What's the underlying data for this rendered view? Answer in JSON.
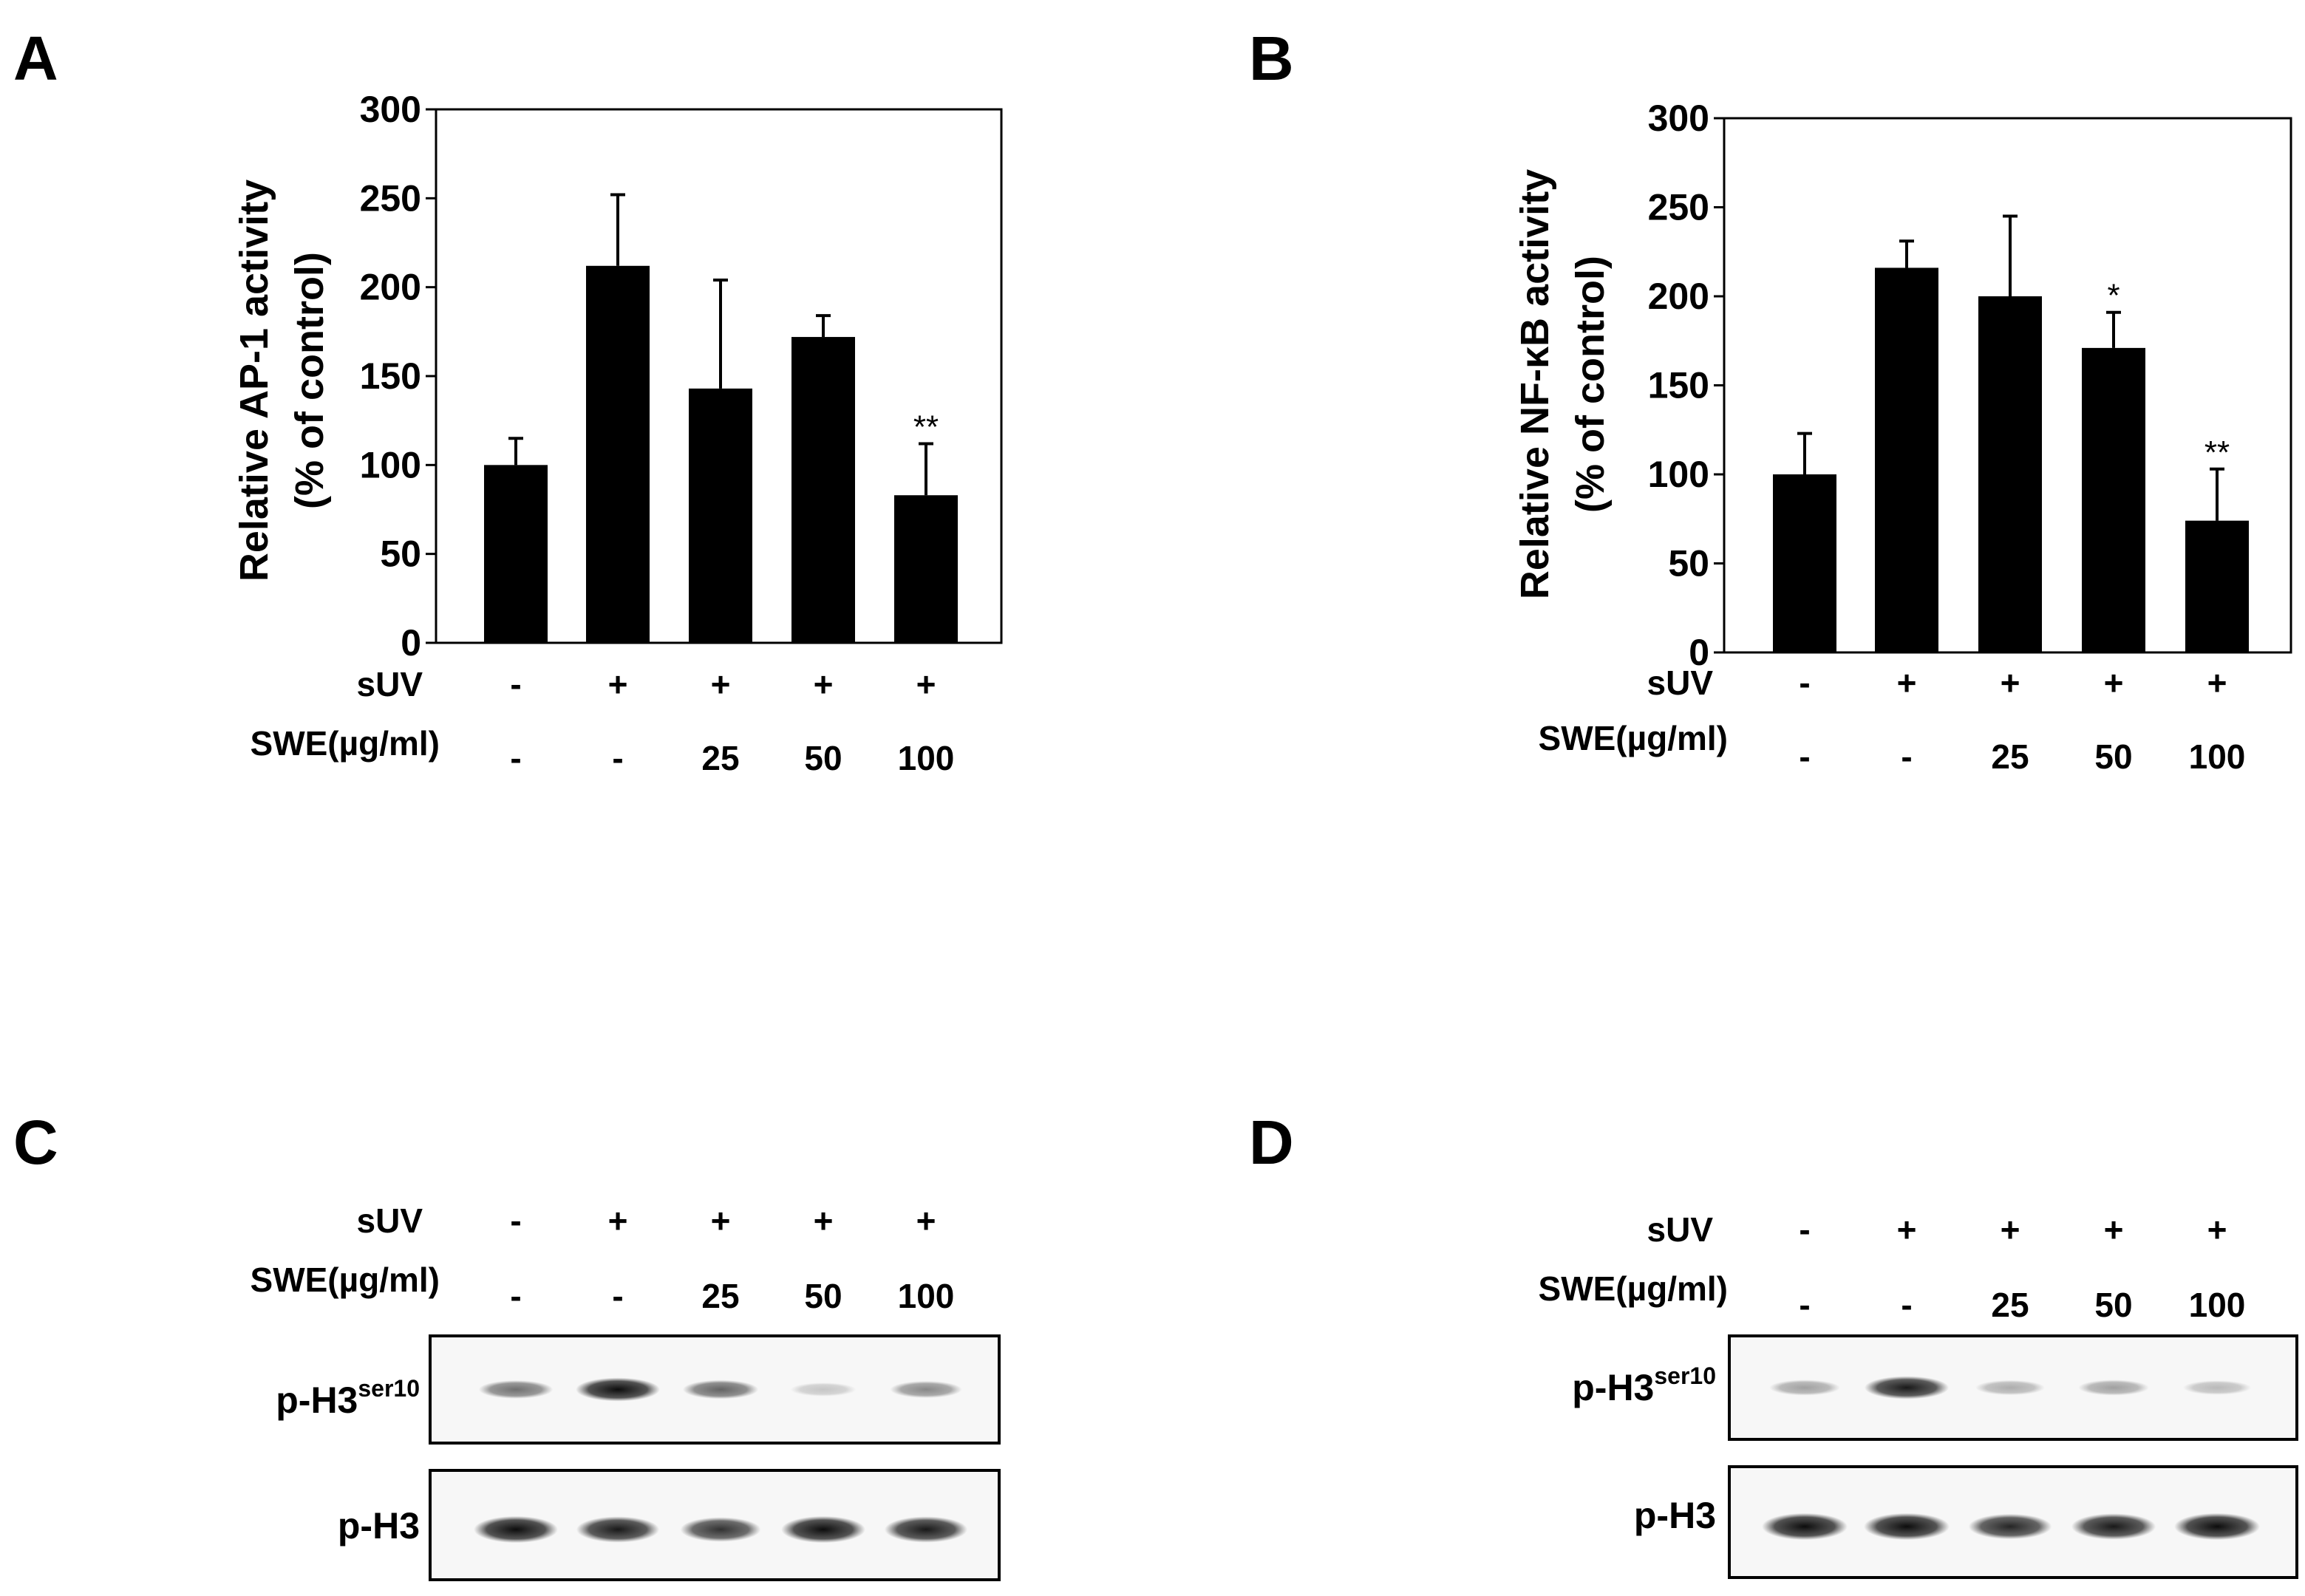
{
  "panels": {
    "A": {
      "letter": "A",
      "ylabel_line1": "Relative  AP-1 activity",
      "ylabel_line2": "(% of control)",
      "row1_label": "sUV",
      "row2_label": "SWE(µg/ml)",
      "suv": [
        "-",
        "+",
        "+",
        "+",
        "+"
      ],
      "swe": [
        "-",
        "-",
        "25",
        "50",
        "100"
      ]
    },
    "B": {
      "letter": "B",
      "ylabel_line1": "Relative NF-κB activity",
      "ylabel_line2": "(% of control)",
      "row1_label": "sUV",
      "row2_label": "SWE(µg/ml)",
      "suv": [
        "-",
        "+",
        "+",
        "+",
        "+"
      ],
      "swe": [
        "-",
        "-",
        "25",
        "50",
        "100"
      ]
    },
    "C": {
      "letter": "C",
      "row1_label": "sUV",
      "row2_label": "SWE(µg/ml)",
      "suv": [
        "-",
        "+",
        "+",
        "+",
        "+"
      ],
      "swe": [
        "-",
        "-",
        "25",
        "50",
        "100"
      ],
      "blot1_label": "p-H3",
      "blot1_sup": "ser10",
      "blot2_label": "p-H3",
      "blot1_intensity": [
        0.55,
        0.95,
        0.6,
        0.2,
        0.45
      ],
      "blot2_intensity": [
        0.95,
        0.9,
        0.8,
        0.95,
        0.9
      ]
    },
    "D": {
      "letter": "D",
      "row1_label": "sUV",
      "row2_label": "SWE(µg/ml)",
      "suv": [
        "-",
        "+",
        "+",
        "+",
        "+"
      ],
      "swe": [
        "-",
        "-",
        "25",
        "50",
        "100"
      ],
      "blot1_label": "p-H3",
      "blot1_sup": "ser10",
      "blot2_label": "p-H3",
      "blot1_intensity": [
        0.35,
        0.9,
        0.3,
        0.35,
        0.25
      ],
      "blot2_intensity": [
        0.95,
        0.95,
        0.85,
        0.9,
        0.95
      ]
    }
  },
  "chart_data": [
    {
      "type": "bar",
      "panel": "A",
      "ylabel": "Relative  AP-1 activity (% of control)",
      "ylim": [
        0,
        300
      ],
      "yticks": [
        0,
        50,
        100,
        150,
        200,
        250,
        300
      ],
      "categories": [
        "- / -",
        "+ / -",
        "+ / 25",
        "+ / 50",
        "+ / 100"
      ],
      "values": [
        100,
        212,
        143,
        172,
        83
      ],
      "errors": [
        15,
        40,
        61,
        12,
        29
      ],
      "significance": [
        "",
        "",
        "",
        "",
        "**"
      ]
    },
    {
      "type": "bar",
      "panel": "B",
      "ylabel": "Relative NF-κB activity (% of control)",
      "ylim": [
        0,
        300
      ],
      "yticks": [
        0,
        50,
        100,
        150,
        200,
        250,
        300
      ],
      "categories": [
        "- / -",
        "+ / -",
        "+ / 25",
        "+ / 50",
        "+ / 100"
      ],
      "values": [
        100,
        216,
        200,
        171,
        74
      ],
      "errors": [
        23,
        15,
        45,
        20,
        29
      ],
      "significance": [
        "",
        "",
        "",
        "*",
        "**"
      ]
    }
  ]
}
